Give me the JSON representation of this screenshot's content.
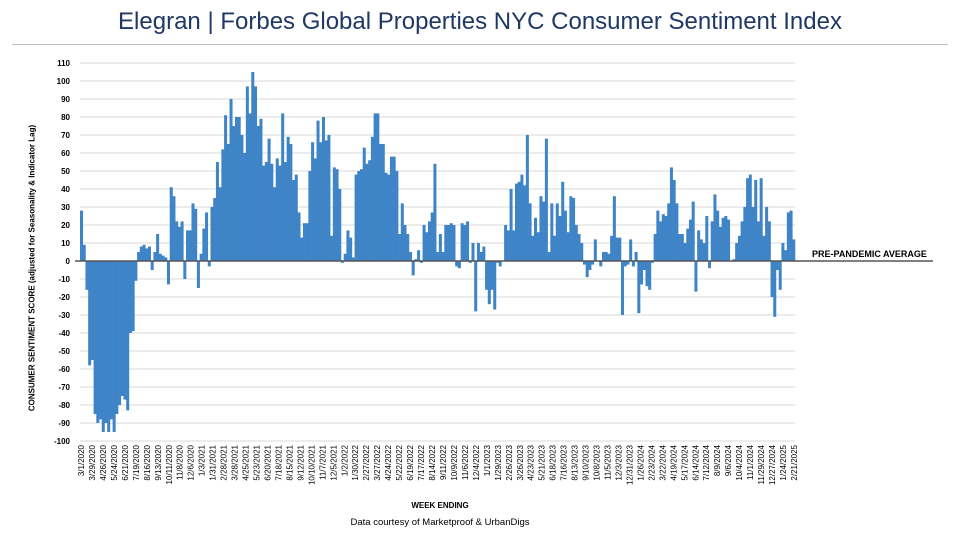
{
  "chart_data": {
    "type": "bar",
    "title": "Elegran | Forbes Global Properties NYC Consumer Sentiment Index",
    "xlabel": "WEEK ENDING",
    "ylabel": "CONSUMER SENTIMENT SCORE (adjusted for Seasonality & Indicator Lag)",
    "ylim": [
      -100,
      110
    ],
    "ytick_step": 10,
    "grid": true,
    "bar_color": "#3f84c6",
    "reference_line": {
      "value": 0,
      "label": "PRE-PANDEMIC AVERAGE",
      "color": "#555555"
    },
    "source": "Data courtesy of Marketproof & UrbanDigs",
    "x_tick_labels": [
      "3/1/2020",
      "3/29/2020",
      "4/26/2020",
      "5/24/2020",
      "6/21/2020",
      "7/19/2020",
      "8/16/2020",
      "9/13/2020",
      "10/11/2020",
      "11/8/2020",
      "12/6/2020",
      "1/3/2021",
      "1/31/2021",
      "2/28/2021",
      "3/28/2021",
      "4/25/2021",
      "5/23/2021",
      "6/20/2021",
      "7/18/2021",
      "8/15/2021",
      "9/12/2021",
      "10/10/2021",
      "11/7/2021",
      "12/5/2021",
      "1/2/2022",
      "1/30/2022",
      "2/27/2022",
      "3/27/2022",
      "4/24/2022",
      "5/22/2022",
      "6/19/2022",
      "7/17/2022",
      "8/14/2022",
      "9/11/2022",
      "10/9/2022",
      "11/6/2022",
      "12/4/2022",
      "1/1/2023",
      "1/29/2023",
      "2/26/2023",
      "3/26/2023",
      "4/23/2023",
      "5/21/2023",
      "6/18/2023",
      "7/16/2023",
      "8/13/2023",
      "9/10/2023",
      "10/8/2023",
      "11/5/2023",
      "12/3/2023",
      "12/31/2023",
      "1/26/2024",
      "2/23/2024",
      "3/22/2024",
      "4/19/2024",
      "5/17/2024",
      "6/14/2024",
      "7/12/2024",
      "8/9/2024",
      "9/6/2024",
      "10/4/2024",
      "11/1/2024",
      "11/29/2024",
      "12/27/2024",
      "1/24/2025",
      "2/21/2025"
    ],
    "values": [
      28,
      9,
      -16,
      -58,
      -55,
      -85,
      -90,
      -88,
      -95,
      -90,
      -95,
      -88,
      -95,
      -85,
      -80,
      -75,
      -77,
      -83,
      -40,
      -39,
      -11,
      5,
      8,
      9,
      7,
      8,
      -5,
      5,
      15,
      4,
      3,
      2,
      -13,
      41,
      36,
      22,
      19,
      22,
      -10,
      17,
      17,
      32,
      29,
      -15,
      4,
      18,
      27,
      -3,
      30,
      35,
      55,
      41,
      62,
      81,
      65,
      90,
      75,
      80,
      80,
      70,
      60,
      97,
      82,
      105,
      97,
      75,
      79,
      53,
      55,
      68,
      54,
      41,
      57,
      53,
      82,
      55,
      69,
      65,
      45,
      48,
      27,
      13,
      21,
      21,
      50,
      66,
      57,
      78,
      66,
      80,
      67,
      70,
      14,
      52,
      51,
      40,
      -1,
      4,
      17,
      13,
      2,
      48,
      50,
      51,
      63,
      54,
      56,
      69,
      82,
      82,
      65,
      65,
      49,
      48,
      58,
      58,
      50,
      15,
      32,
      20,
      15,
      5,
      -8,
      1,
      6,
      -1,
      20,
      16,
      22,
      27,
      54,
      5,
      15,
      5,
      20,
      20,
      21,
      20,
      -3,
      -4,
      21,
      20,
      22,
      -1,
      10,
      -28,
      10,
      5,
      8,
      -16,
      -24,
      -16,
      -27,
      -1,
      -3,
      0,
      20,
      17,
      40,
      17,
      43,
      44,
      48,
      42,
      70,
      32,
      14,
      24,
      16,
      36,
      33,
      68,
      5,
      32,
      14,
      32,
      25,
      44,
      28,
      16,
      36,
      35,
      20,
      15,
      10,
      -2,
      -9,
      -5,
      -2,
      12,
      0,
      -3,
      5,
      5,
      4,
      14,
      36,
      13,
      13,
      -30,
      -3,
      -2,
      12,
      -3,
      5,
      -29,
      -13,
      -5,
      -14,
      -16,
      -1,
      15,
      28,
      22,
      26,
      25,
      32,
      52,
      45,
      32,
      15,
      15,
      10,
      18,
      23,
      33,
      -17,
      17,
      12,
      10,
      25,
      -4,
      22,
      37,
      28,
      19,
      24,
      25,
      23,
      0,
      1,
      10,
      14,
      22,
      30,
      46,
      48,
      30,
      45,
      22,
      46,
      14,
      30,
      22,
      -20,
      -31,
      -5,
      -16,
      10,
      6,
      27,
      28,
      12
    ]
  }
}
